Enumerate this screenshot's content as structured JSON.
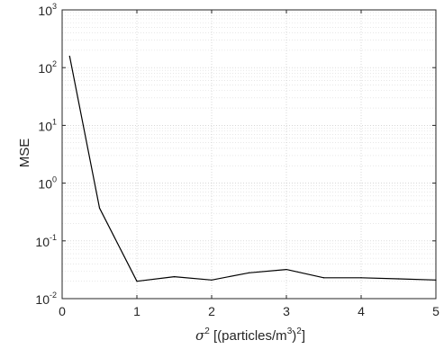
{
  "chart_data": {
    "type": "line",
    "xlabel": "σ² [(particles/m³)²]",
    "ylabel": "MSE",
    "xlim": [
      0,
      5
    ],
    "ylim": [
      0.01,
      1000
    ],
    "y_scale": "log",
    "grid": true,
    "x_ticks": [
      "0",
      "1",
      "2",
      "3",
      "4",
      "5"
    ],
    "y_ticks": [
      {
        "base": "10",
        "exp": "-2",
        "value": 0.01
      },
      {
        "base": "10",
        "exp": "-1",
        "value": 0.1
      },
      {
        "base": "10",
        "exp": "0",
        "value": 1
      },
      {
        "base": "10",
        "exp": "1",
        "value": 10
      },
      {
        "base": "10",
        "exp": "2",
        "value": 100
      },
      {
        "base": "10",
        "exp": "3",
        "value": 1000
      }
    ],
    "series": [
      {
        "color": "#000000",
        "x": [
          0.1,
          0.5,
          1.0,
          1.5,
          2.0,
          2.5,
          3.0,
          3.5,
          4.0,
          4.5,
          5.0
        ],
        "y": [
          158,
          0.37,
          0.02,
          0.024,
          0.021,
          0.028,
          0.032,
          0.023,
          0.023,
          0.022,
          0.021
        ]
      }
    ]
  }
}
